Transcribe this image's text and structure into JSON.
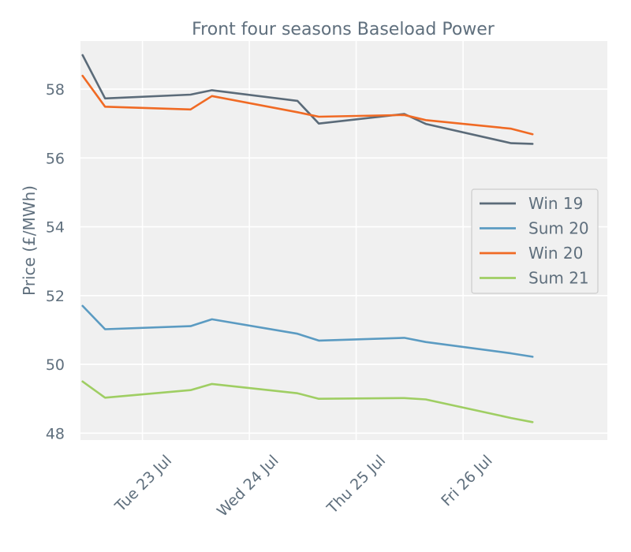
{
  "chart_data": {
    "type": "line",
    "title": "Front four seasons Baseload Power",
    "xlabel": "",
    "ylabel": "Price (£/MWh)",
    "ylim": [
      47.8,
      59.4
    ],
    "yticks": [
      48,
      50,
      52,
      54,
      56,
      58
    ],
    "xlim": [
      -0.58,
      4.35
    ],
    "xticks": [
      {
        "x": 0.0,
        "label": "Tue 23 Jul"
      },
      {
        "x": 1.0,
        "label": "Wed 24 Jul"
      },
      {
        "x": 2.0,
        "label": "Thu 25 Jul"
      },
      {
        "x": 3.0,
        "label": "Fri 26 Jul"
      }
    ],
    "grid": true,
    "legend_position": "right",
    "x": [
      -0.56,
      -0.35,
      0.45,
      0.65,
      1.45,
      1.65,
      2.45,
      2.65,
      3.45,
      3.65
    ],
    "series": [
      {
        "name": "Win 19",
        "color": "#5b6b79",
        "values": [
          58.99,
          57.73,
          57.84,
          57.97,
          57.66,
          57.0,
          57.28,
          56.99,
          56.43,
          56.41
        ]
      },
      {
        "name": "Sum 20",
        "color": "#5b9bc2",
        "values": [
          51.7,
          51.02,
          51.11,
          51.31,
          50.89,
          50.69,
          50.77,
          50.65,
          50.32,
          50.22
        ]
      },
      {
        "name": "Win 20",
        "color": "#f06a24",
        "values": [
          58.39,
          57.49,
          57.41,
          57.8,
          57.33,
          57.2,
          57.25,
          57.1,
          56.85,
          56.69
        ]
      },
      {
        "name": "Sum 21",
        "color": "#9fce63",
        "values": [
          49.5,
          49.03,
          49.25,
          49.43,
          49.16,
          49.0,
          49.02,
          48.98,
          48.44,
          48.32
        ]
      }
    ]
  }
}
